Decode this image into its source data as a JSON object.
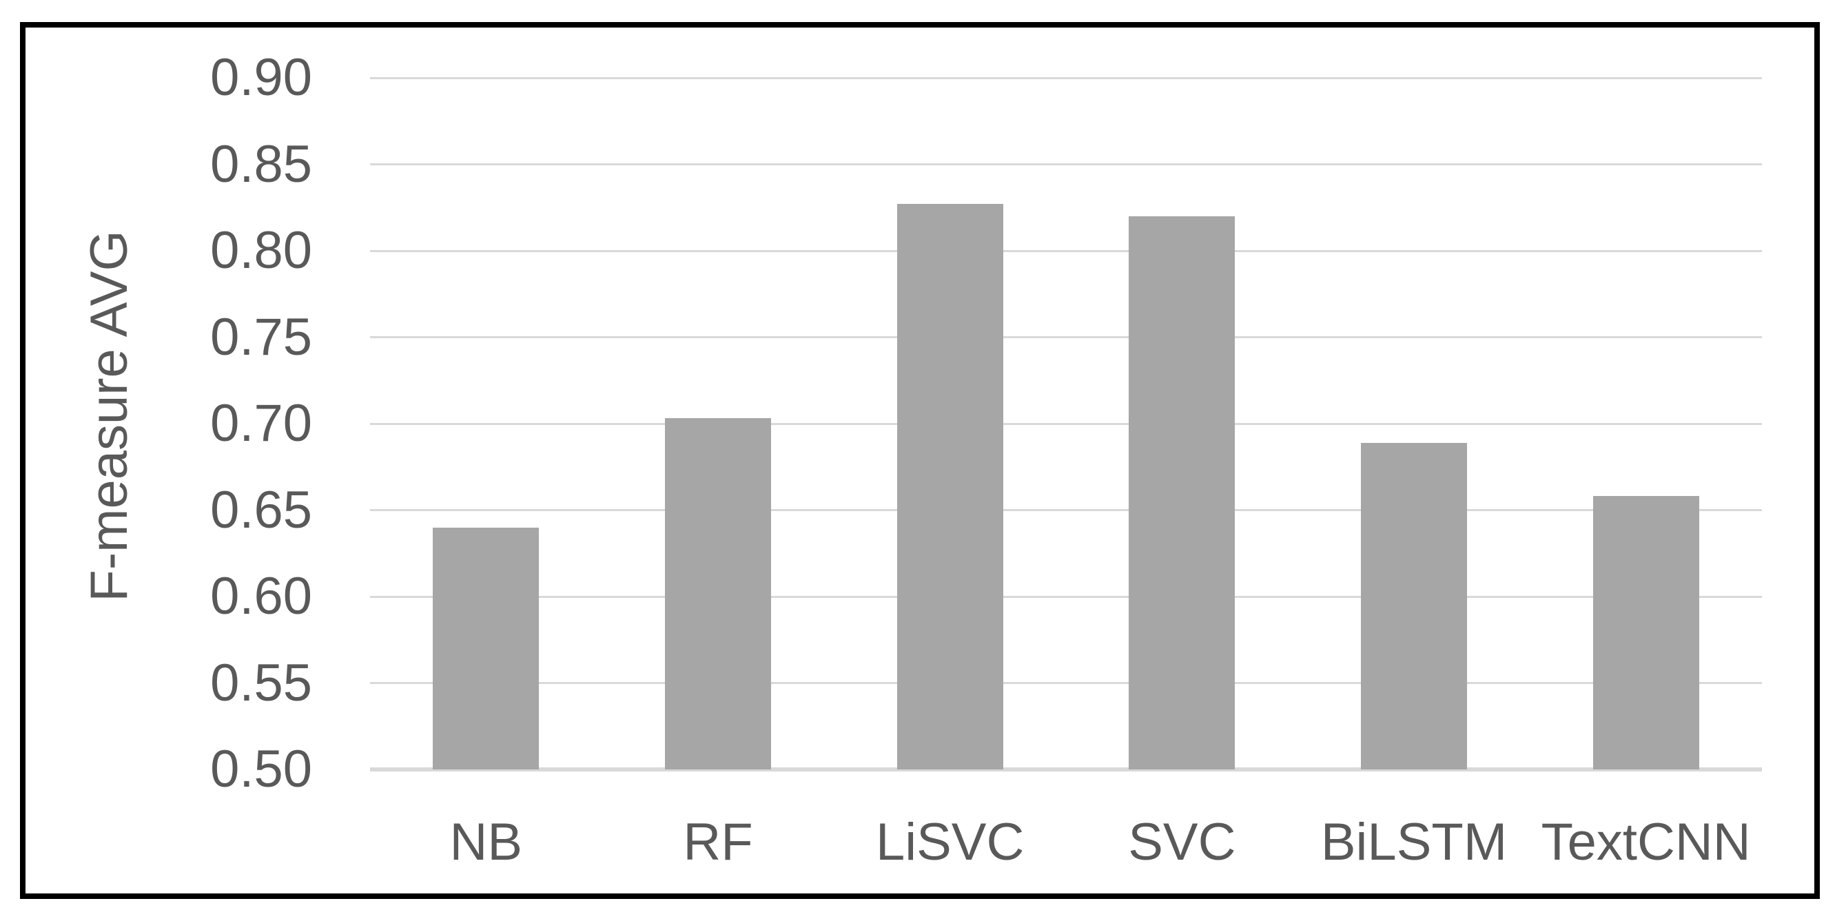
{
  "chart_data": {
    "type": "bar",
    "title": "",
    "xlabel": "",
    "ylabel": "F-measure AVG",
    "categories": [
      "NB",
      "RF",
      "LiSVC",
      "SVC",
      "BiLSTM",
      "TextCNN"
    ],
    "values": [
      0.64,
      0.703,
      0.827,
      0.82,
      0.689,
      0.658
    ],
    "ylim": [
      0.5,
      0.9
    ],
    "y_ticks": [
      "0.50",
      "0.55",
      "0.60",
      "0.65",
      "0.70",
      "0.75",
      "0.80",
      "0.85",
      "0.90"
    ],
    "grid": true,
    "legend": false,
    "colors": {
      "bar": "#a6a6a6",
      "gridline": "#d9d9d9",
      "text": "#595959",
      "frame_border": "#000000",
      "background": "#ffffff"
    }
  }
}
